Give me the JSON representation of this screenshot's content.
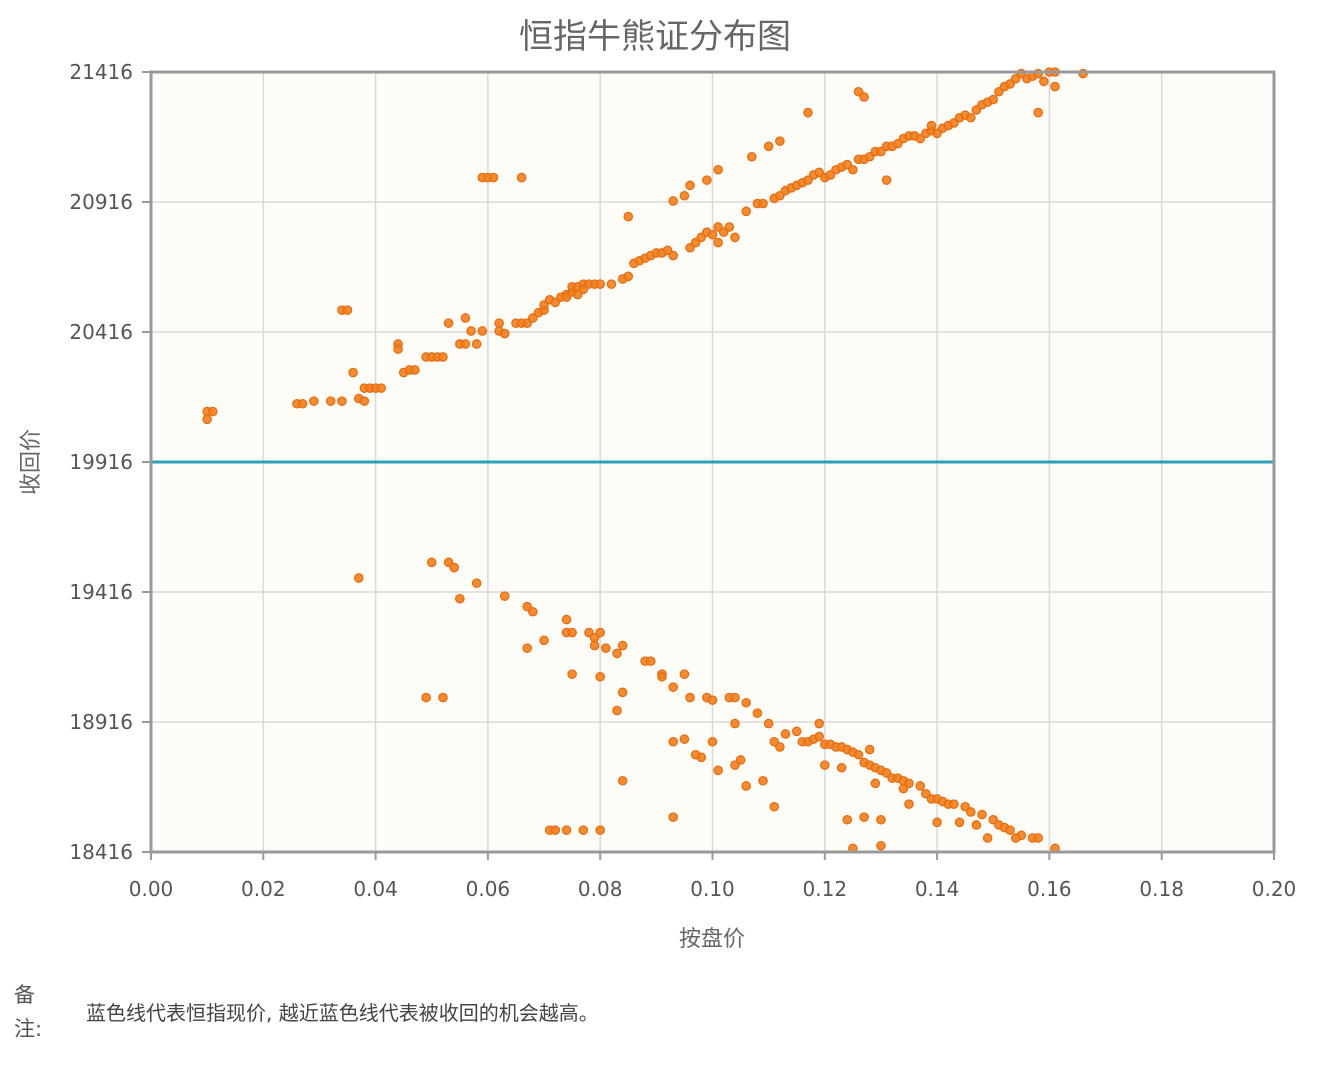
{
  "note": {
    "label": "备注:",
    "text": "蓝色线代表恒指现价, 越近蓝色线代表被收回的机会越高。"
  },
  "chart_data": {
    "type": "scatter",
    "title": "恒指牛熊证分布图",
    "xlabel": "按盘价",
    "ylabel": "收回价",
    "xlim": [
      0,
      0.2
    ],
    "ylim": [
      18416,
      21416
    ],
    "x_ticks": [
      "0.00",
      "0.02",
      "0.04",
      "0.06",
      "0.08",
      "0.10",
      "0.12",
      "0.14",
      "0.16",
      "0.18",
      "0.20"
    ],
    "y_ticks": [
      "21416",
      "20916",
      "20416",
      "19916",
      "19416",
      "18916",
      "18416"
    ],
    "grid": true,
    "reference_line": {
      "y": 19916,
      "color": "#2aa1b8"
    },
    "colors": {
      "points": "#f07f1e",
      "plot_bg": "#fdfcf6",
      "grid": "#d9d9d9",
      "frame": "#999999"
    },
    "points": [
      [
        0.01,
        20110
      ],
      [
        0.01,
        20080
      ],
      [
        0.011,
        20110
      ],
      [
        0.026,
        20140
      ],
      [
        0.027,
        20140
      ],
      [
        0.029,
        20150
      ],
      [
        0.032,
        20150
      ],
      [
        0.034,
        20150
      ],
      [
        0.034,
        20500
      ],
      [
        0.035,
        20500
      ],
      [
        0.036,
        20260
      ],
      [
        0.037,
        20160
      ],
      [
        0.038,
        20150
      ],
      [
        0.038,
        20200
      ],
      [
        0.039,
        20200
      ],
      [
        0.04,
        20200
      ],
      [
        0.041,
        20200
      ],
      [
        0.044,
        20370
      ],
      [
        0.044,
        20350
      ],
      [
        0.045,
        20260
      ],
      [
        0.046,
        20270
      ],
      [
        0.047,
        20270
      ],
      [
        0.049,
        20320
      ],
      [
        0.05,
        20320
      ],
      [
        0.051,
        20320
      ],
      [
        0.052,
        20320
      ],
      [
        0.053,
        20450
      ],
      [
        0.055,
        20370
      ],
      [
        0.056,
        20370
      ],
      [
        0.056,
        20470
      ],
      [
        0.057,
        20420
      ],
      [
        0.058,
        20370
      ],
      [
        0.059,
        20420
      ],
      [
        0.059,
        21010
      ],
      [
        0.06,
        21010
      ],
      [
        0.061,
        21010
      ],
      [
        0.062,
        20450
      ],
      [
        0.062,
        20420
      ],
      [
        0.063,
        20410
      ],
      [
        0.065,
        20450
      ],
      [
        0.066,
        20450
      ],
      [
        0.066,
        21010
      ],
      [
        0.067,
        20450
      ],
      [
        0.068,
        20470
      ],
      [
        0.069,
        20490
      ],
      [
        0.07,
        20500
      ],
      [
        0.07,
        20520
      ],
      [
        0.071,
        20540
      ],
      [
        0.072,
        20530
      ],
      [
        0.073,
        20550
      ],
      [
        0.074,
        20560
      ],
      [
        0.074,
        20550
      ],
      [
        0.075,
        20570
      ],
      [
        0.075,
        20590
      ],
      [
        0.076,
        20590
      ],
      [
        0.076,
        20560
      ],
      [
        0.077,
        20600
      ],
      [
        0.077,
        20580
      ],
      [
        0.078,
        20600
      ],
      [
        0.079,
        20600
      ],
      [
        0.08,
        20600
      ],
      [
        0.082,
        20600
      ],
      [
        0.084,
        20620
      ],
      [
        0.085,
        20630
      ],
      [
        0.085,
        20860
      ],
      [
        0.086,
        20680
      ],
      [
        0.087,
        20690
      ],
      [
        0.088,
        20700
      ],
      [
        0.089,
        20710
      ],
      [
        0.09,
        20720
      ],
      [
        0.091,
        20720
      ],
      [
        0.092,
        20730
      ],
      [
        0.093,
        20710
      ],
      [
        0.093,
        20920
      ],
      [
        0.095,
        20940
      ],
      [
        0.096,
        20740
      ],
      [
        0.097,
        20760
      ],
      [
        0.098,
        20780
      ],
      [
        0.099,
        20800
      ],
      [
        0.1,
        20790
      ],
      [
        0.101,
        20760
      ],
      [
        0.101,
        20820
      ],
      [
        0.102,
        20800
      ],
      [
        0.103,
        20820
      ],
      [
        0.106,
        20880
      ],
      [
        0.108,
        20910
      ],
      [
        0.109,
        20910
      ],
      [
        0.11,
        21130
      ],
      [
        0.111,
        20930
      ],
      [
        0.112,
        20940
      ],
      [
        0.113,
        20960
      ],
      [
        0.114,
        20970
      ],
      [
        0.115,
        20980
      ],
      [
        0.116,
        20990
      ],
      [
        0.117,
        21000
      ],
      [
        0.118,
        21020
      ],
      [
        0.119,
        21030
      ],
      [
        0.12,
        21010
      ],
      [
        0.121,
        21020
      ],
      [
        0.122,
        21040
      ],
      [
        0.123,
        21050
      ],
      [
        0.124,
        21060
      ],
      [
        0.125,
        21040
      ],
      [
        0.126,
        21080
      ],
      [
        0.127,
        21080
      ],
      [
        0.128,
        21090
      ],
      [
        0.129,
        21110
      ],
      [
        0.13,
        21110
      ],
      [
        0.131,
        21130
      ],
      [
        0.132,
        21130
      ],
      [
        0.133,
        21140
      ],
      [
        0.134,
        21160
      ],
      [
        0.135,
        21170
      ],
      [
        0.136,
        21170
      ],
      [
        0.137,
        21160
      ],
      [
        0.138,
        21180
      ],
      [
        0.139,
        21190
      ],
      [
        0.14,
        21180
      ],
      [
        0.141,
        21200
      ],
      [
        0.142,
        21210
      ],
      [
        0.143,
        21220
      ],
      [
        0.144,
        21240
      ],
      [
        0.145,
        21250
      ],
      [
        0.146,
        21240
      ],
      [
        0.147,
        21270
      ],
      [
        0.148,
        21290
      ],
      [
        0.149,
        21300
      ],
      [
        0.15,
        21310
      ],
      [
        0.151,
        21340
      ],
      [
        0.152,
        21360
      ],
      [
        0.153,
        21370
      ],
      [
        0.154,
        21390
      ],
      [
        0.155,
        21410
      ],
      [
        0.156,
        21390
      ],
      [
        0.157,
        21400
      ],
      [
        0.158,
        21410
      ],
      [
        0.159,
        21380
      ],
      [
        0.16,
        21416
      ],
      [
        0.161,
        21416
      ],
      [
        0.126,
        21340
      ],
      [
        0.127,
        21320
      ],
      [
        0.117,
        21260
      ],
      [
        0.112,
        21150
      ],
      [
        0.107,
        21090
      ],
      [
        0.101,
        21040
      ],
      [
        0.099,
        21000
      ],
      [
        0.096,
        20980
      ],
      [
        0.131,
        21000
      ],
      [
        0.139,
        21210
      ],
      [
        0.158,
        21260
      ],
      [
        0.161,
        21360
      ],
      [
        0.166,
        21410
      ],
      [
        0.104,
        20780
      ],
      [
        0.037,
        19470
      ],
      [
        0.05,
        19530
      ],
      [
        0.053,
        19530
      ],
      [
        0.054,
        19510
      ],
      [
        0.055,
        19390
      ],
      [
        0.058,
        19450
      ],
      [
        0.063,
        19400
      ],
      [
        0.067,
        19360
      ],
      [
        0.068,
        19340
      ],
      [
        0.07,
        19230
      ],
      [
        0.067,
        19200
      ],
      [
        0.074,
        19310
      ],
      [
        0.074,
        19260
      ],
      [
        0.075,
        19260
      ],
      [
        0.078,
        19260
      ],
      [
        0.079,
        19240
      ],
      [
        0.079,
        19210
      ],
      [
        0.08,
        19260
      ],
      [
        0.081,
        19200
      ],
      [
        0.083,
        19180
      ],
      [
        0.084,
        19210
      ],
      [
        0.088,
        19150
      ],
      [
        0.089,
        19150
      ],
      [
        0.091,
        19100
      ],
      [
        0.091,
        19090
      ],
      [
        0.093,
        19050
      ],
      [
        0.095,
        19100
      ],
      [
        0.075,
        19100
      ],
      [
        0.08,
        19090
      ],
      [
        0.084,
        19030
      ],
      [
        0.083,
        18960
      ],
      [
        0.049,
        19010
      ],
      [
        0.052,
        19010
      ],
      [
        0.096,
        19010
      ],
      [
        0.099,
        19010
      ],
      [
        0.1,
        19000
      ],
      [
        0.103,
        19010
      ],
      [
        0.104,
        19010
      ],
      [
        0.106,
        18990
      ],
      [
        0.108,
        18950
      ],
      [
        0.104,
        18910
      ],
      [
        0.11,
        18910
      ],
      [
        0.113,
        18870
      ],
      [
        0.115,
        18880
      ],
      [
        0.116,
        18840
      ],
      [
        0.117,
        18840
      ],
      [
        0.118,
        18850
      ],
      [
        0.119,
        18860
      ],
      [
        0.119,
        18910
      ],
      [
        0.12,
        18830
      ],
      [
        0.121,
        18830
      ],
      [
        0.122,
        18820
      ],
      [
        0.123,
        18820
      ],
      [
        0.124,
        18810
      ],
      [
        0.125,
        18800
      ],
      [
        0.126,
        18790
      ],
      [
        0.127,
        18760
      ],
      [
        0.128,
        18750
      ],
      [
        0.129,
        18740
      ],
      [
        0.13,
        18730
      ],
      [
        0.131,
        18720
      ],
      [
        0.132,
        18700
      ],
      [
        0.133,
        18700
      ],
      [
        0.134,
        18690
      ],
      [
        0.135,
        18680
      ],
      [
        0.137,
        18670
      ],
      [
        0.138,
        18640
      ],
      [
        0.139,
        18620
      ],
      [
        0.14,
        18620
      ],
      [
        0.141,
        18610
      ],
      [
        0.142,
        18600
      ],
      [
        0.143,
        18600
      ],
      [
        0.145,
        18590
      ],
      [
        0.146,
        18570
      ],
      [
        0.148,
        18560
      ],
      [
        0.15,
        18540
      ],
      [
        0.151,
        18520
      ],
      [
        0.152,
        18510
      ],
      [
        0.153,
        18500
      ],
      [
        0.155,
        18480
      ],
      [
        0.157,
        18470
      ],
      [
        0.158,
        18470
      ],
      [
        0.161,
        18430
      ],
      [
        0.154,
        18470
      ],
      [
        0.149,
        18470
      ],
      [
        0.147,
        18520
      ],
      [
        0.144,
        18530
      ],
      [
        0.14,
        18530
      ],
      [
        0.135,
        18600
      ],
      [
        0.13,
        18540
      ],
      [
        0.127,
        18550
      ],
      [
        0.124,
        18540
      ],
      [
        0.125,
        18430
      ],
      [
        0.13,
        18440
      ],
      [
        0.129,
        18680
      ],
      [
        0.134,
        18660
      ],
      [
        0.128,
        18810
      ],
      [
        0.123,
        18740
      ],
      [
        0.12,
        18750
      ],
      [
        0.111,
        18840
      ],
      [
        0.112,
        18820
      ],
      [
        0.109,
        18690
      ],
      [
        0.111,
        18590
      ],
      [
        0.104,
        18750
      ],
      [
        0.105,
        18770
      ],
      [
        0.106,
        18670
      ],
      [
        0.101,
        18730
      ],
      [
        0.098,
        18780
      ],
      [
        0.097,
        18790
      ],
      [
        0.093,
        18840
      ],
      [
        0.095,
        18850
      ],
      [
        0.1,
        18840
      ],
      [
        0.093,
        18550
      ],
      [
        0.084,
        18690
      ],
      [
        0.071,
        18500
      ],
      [
        0.072,
        18500
      ],
      [
        0.074,
        18500
      ],
      [
        0.077,
        18500
      ],
      [
        0.08,
        18500
      ]
    ]
  }
}
